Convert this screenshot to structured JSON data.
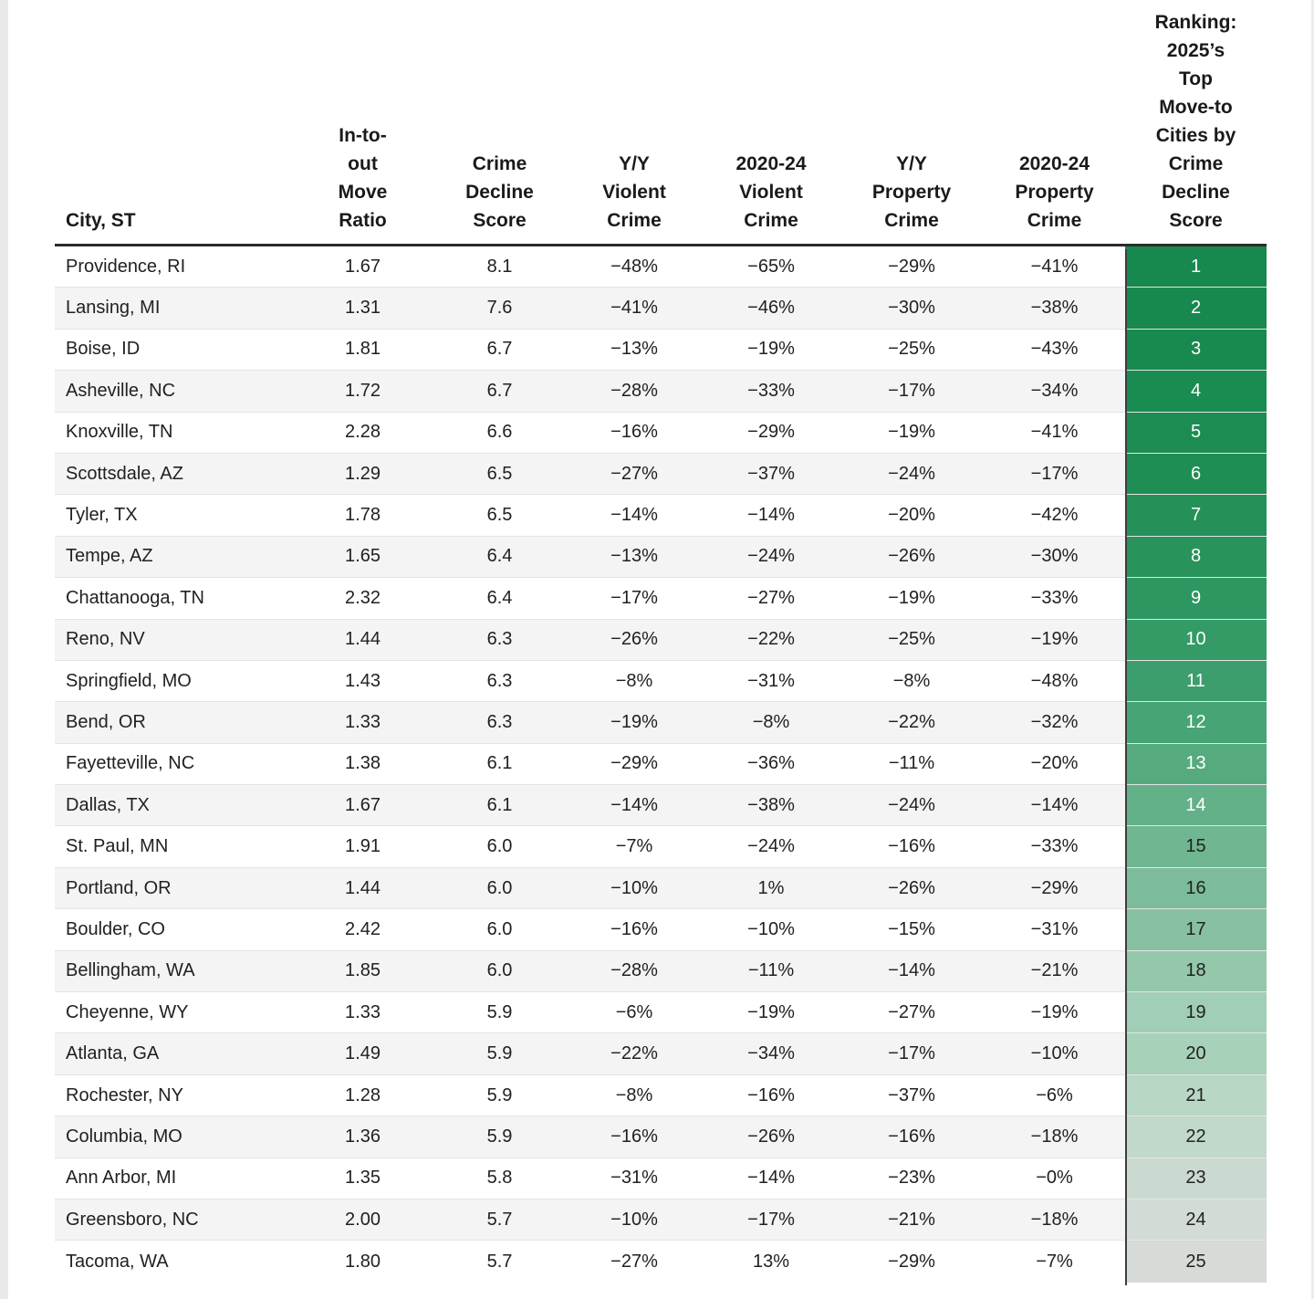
{
  "page": {
    "background": "#ffffff",
    "gutter_color": "#e9e9e9"
  },
  "colors": {
    "header_border": "#2a2a2a",
    "row_stripe": "#f4f4f4",
    "row_separator": "#e4e4e4",
    "rank_column_divider": "#3d3d3d",
    "rank_green_dark": "#17894e",
    "rank_green_light_gray": "#d7dbd8"
  },
  "chart_data": {
    "type": "table",
    "title": "",
    "columns": [
      {
        "id": "city",
        "label": "City, ST",
        "lines": [
          "City, ST"
        ]
      },
      {
        "id": "move_ratio",
        "label": "In-to-out Move Ratio",
        "lines": [
          "In-to-",
          "out",
          "Move",
          "Ratio"
        ]
      },
      {
        "id": "score",
        "label": "Crime Decline Score",
        "lines": [
          "Crime",
          "Decline",
          "Score"
        ]
      },
      {
        "id": "yy_violent",
        "label": "Y/Y Violent Crime",
        "lines": [
          "Y/Y",
          "Violent",
          "Crime"
        ]
      },
      {
        "id": "violent_2020_24",
        "label": "2020-24 Violent Crime",
        "lines": [
          "2020-24",
          "Violent",
          "Crime"
        ]
      },
      {
        "id": "yy_property",
        "label": "Y/Y Property Crime",
        "lines": [
          "Y/Y",
          "Property",
          "Crime"
        ]
      },
      {
        "id": "property_2020_24",
        "label": "2020-24 Property Crime",
        "lines": [
          "2020-24",
          "Property",
          "Crime"
        ]
      },
      {
        "id": "ranking",
        "label": "Ranking: 2025’s Top Move-to Cities by Crime Decline Score",
        "lines": [
          "Ranking:",
          "2025’s",
          "Top",
          "Move-to",
          "Cities by",
          "Crime",
          "Decline",
          "Score"
        ]
      }
    ],
    "rows": [
      {
        "city": "Providence, RI",
        "move_ratio": "1.67",
        "score": "8.1",
        "yy_violent": "−48%",
        "violent_2020_24": "−65%",
        "yy_property": "−29%",
        "property_2020_24": "−41%",
        "rank": "1",
        "rank_bg": "#17894e",
        "rank_fg": "#ffffff"
      },
      {
        "city": "Lansing, MI",
        "move_ratio": "1.31",
        "score": "7.6",
        "yy_violent": "−41%",
        "violent_2020_24": "−46%",
        "yy_property": "−30%",
        "property_2020_24": "−38%",
        "rank": "2",
        "rank_bg": "#17894e",
        "rank_fg": "#ffffff"
      },
      {
        "city": "Boise, ID",
        "move_ratio": "1.81",
        "score": "6.7",
        "yy_violent": "−13%",
        "violent_2020_24": "−19%",
        "yy_property": "−25%",
        "property_2020_24": "−43%",
        "rank": "3",
        "rank_bg": "#188a50",
        "rank_fg": "#ffffff"
      },
      {
        "city": "Asheville, NC",
        "move_ratio": "1.72",
        "score": "6.7",
        "yy_violent": "−28%",
        "violent_2020_24": "−33%",
        "yy_property": "−17%",
        "property_2020_24": "−34%",
        "rank": "4",
        "rank_bg": "#1a8b51",
        "rank_fg": "#ffffff"
      },
      {
        "city": "Knoxville, TN",
        "move_ratio": "2.28",
        "score": "6.6",
        "yy_violent": "−16%",
        "violent_2020_24": "−29%",
        "yy_property": "−19%",
        "property_2020_24": "−41%",
        "rank": "5",
        "rank_bg": "#1c8c52",
        "rank_fg": "#ffffff"
      },
      {
        "city": "Scottsdale, AZ",
        "move_ratio": "1.29",
        "score": "6.5",
        "yy_violent": "−27%",
        "violent_2020_24": "−37%",
        "yy_property": "−24%",
        "property_2020_24": "−17%",
        "rank": "6",
        "rank_bg": "#1f8e55",
        "rank_fg": "#ffffff"
      },
      {
        "city": "Tyler, TX",
        "move_ratio": "1.78",
        "score": "6.5",
        "yy_violent": "−14%",
        "violent_2020_24": "−14%",
        "yy_property": "−20%",
        "property_2020_24": "−42%",
        "rank": "7",
        "rank_bg": "#239158",
        "rank_fg": "#ffffff"
      },
      {
        "city": "Tempe, AZ",
        "move_ratio": "1.65",
        "score": "6.4",
        "yy_violent": "−13%",
        "violent_2020_24": "−24%",
        "yy_property": "−26%",
        "property_2020_24": "−30%",
        "rank": "8",
        "rank_bg": "#28945c",
        "rank_fg": "#ffffff"
      },
      {
        "city": "Chattanooga, TN",
        "move_ratio": "2.32",
        "score": "6.4",
        "yy_violent": "−17%",
        "violent_2020_24": "−27%",
        "yy_property": "−19%",
        "property_2020_24": "−33%",
        "rank": "9",
        "rank_bg": "#2e9761",
        "rank_fg": "#ffffff"
      },
      {
        "city": "Reno, NV",
        "move_ratio": "1.44",
        "score": "6.3",
        "yy_violent": "−26%",
        "violent_2020_24": "−22%",
        "yy_property": "−25%",
        "property_2020_24": "−19%",
        "rank": "10",
        "rank_bg": "#349b66",
        "rank_fg": "#ffffff"
      },
      {
        "city": "Springfield, MO",
        "move_ratio": "1.43",
        "score": "6.3",
        "yy_violent": "−8%",
        "violent_2020_24": "−31%",
        "yy_property": "−8%",
        "property_2020_24": "−48%",
        "rank": "11",
        "rank_bg": "#3c9e6c",
        "rank_fg": "#ffffff"
      },
      {
        "city": "Bend, OR",
        "move_ratio": "1.33",
        "score": "6.3",
        "yy_violent": "−19%",
        "violent_2020_24": "−8%",
        "yy_property": "−22%",
        "property_2020_24": "−32%",
        "rank": "12",
        "rank_bg": "#47a474",
        "rank_fg": "#ffffff"
      },
      {
        "city": "Fayetteville, NC",
        "move_ratio": "1.38",
        "score": "6.1",
        "yy_violent": "−29%",
        "violent_2020_24": "−36%",
        "yy_property": "−11%",
        "property_2020_24": "−20%",
        "rank": "13",
        "rank_bg": "#55ab7e",
        "rank_fg": "#ffffff"
      },
      {
        "city": "Dallas, TX",
        "move_ratio": "1.67",
        "score": "6.1",
        "yy_violent": "−14%",
        "violent_2020_24": "−38%",
        "yy_property": "−24%",
        "property_2020_24": "−14%",
        "rank": "14",
        "rank_bg": "#63b188",
        "rank_fg": "#ffffff"
      },
      {
        "city": "St. Paul, MN",
        "move_ratio": "1.91",
        "score": "6.0",
        "yy_violent": "−7%",
        "violent_2020_24": "−24%",
        "yy_property": "−16%",
        "property_2020_24": "−33%",
        "rank": "15",
        "rank_bg": "#6fb691",
        "rank_fg": "#222222"
      },
      {
        "city": "Portland, OR",
        "move_ratio": "1.44",
        "score": "6.0",
        "yy_violent": "−10%",
        "violent_2020_24": "1%",
        "yy_property": "−26%",
        "property_2020_24": "−29%",
        "rank": "16",
        "rank_bg": "#7cbc9a",
        "rank_fg": "#222222"
      },
      {
        "city": "Boulder, CO",
        "move_ratio": "2.42",
        "score": "6.0",
        "yy_violent": "−16%",
        "violent_2020_24": "−10%",
        "yy_property": "−15%",
        "property_2020_24": "−31%",
        "rank": "17",
        "rank_bg": "#88c1a2",
        "rank_fg": "#222222"
      },
      {
        "city": "Bellingham, WA",
        "move_ratio": "1.85",
        "score": "6.0",
        "yy_violent": "−28%",
        "violent_2020_24": "−11%",
        "yy_property": "−14%",
        "property_2020_24": "−21%",
        "rank": "18",
        "rank_bg": "#95c7ab",
        "rank_fg": "#222222"
      },
      {
        "city": "Cheyenne, WY",
        "move_ratio": "1.33",
        "score": "5.9",
        "yy_violent": "−6%",
        "violent_2020_24": "−19%",
        "yy_property": "−27%",
        "property_2020_24": "−19%",
        "rank": "19",
        "rank_bg": "#a0ceb6",
        "rank_fg": "#222222"
      },
      {
        "city": "Atlanta, GA",
        "move_ratio": "1.49",
        "score": "5.9",
        "yy_violent": "−22%",
        "violent_2020_24": "−34%",
        "yy_property": "−17%",
        "property_2020_24": "−10%",
        "rank": "20",
        "rank_bg": "#a8d1ba",
        "rank_fg": "#222222"
      },
      {
        "city": "Rochester, NY",
        "move_ratio": "1.28",
        "score": "5.9",
        "yy_violent": "−8%",
        "violent_2020_24": "−16%",
        "yy_property": "−37%",
        "property_2020_24": "−6%",
        "rank": "21",
        "rank_bg": "#b8d7c5",
        "rank_fg": "#222222"
      },
      {
        "city": "Columbia, MO",
        "move_ratio": "1.36",
        "score": "5.9",
        "yy_violent": "−16%",
        "violent_2020_24": "−26%",
        "yy_property": "−16%",
        "property_2020_24": "−18%",
        "rank": "22",
        "rank_bg": "#c1d9ca",
        "rank_fg": "#222222"
      },
      {
        "city": "Ann Arbor, MI",
        "move_ratio": "1.35",
        "score": "5.8",
        "yy_violent": "−31%",
        "violent_2020_24": "−14%",
        "yy_property": "−23%",
        "property_2020_24": "−0%",
        "rank": "23",
        "rank_bg": "#cbdad1",
        "rank_fg": "#222222"
      },
      {
        "city": "Greensboro, NC",
        "move_ratio": "2.00",
        "score": "5.7",
        "yy_violent": "−10%",
        "violent_2020_24": "−17%",
        "yy_property": "−21%",
        "property_2020_24": "−18%",
        "rank": "24",
        "rank_bg": "#d3dbd6",
        "rank_fg": "#222222"
      },
      {
        "city": "Tacoma, WA",
        "move_ratio": "1.80",
        "score": "5.7",
        "yy_violent": "−27%",
        "violent_2020_24": "13%",
        "yy_property": "−29%",
        "property_2020_24": "−7%",
        "rank": "25",
        "rank_bg": "#d7dbd8",
        "rank_fg": "#222222"
      }
    ],
    "layout": {
      "striped_rows": "even ranks shaded #f4f4f4",
      "rank_column": "green-to-gray gradient by rank, white text ranks 1-14, dark text ranks 15-25"
    }
  }
}
